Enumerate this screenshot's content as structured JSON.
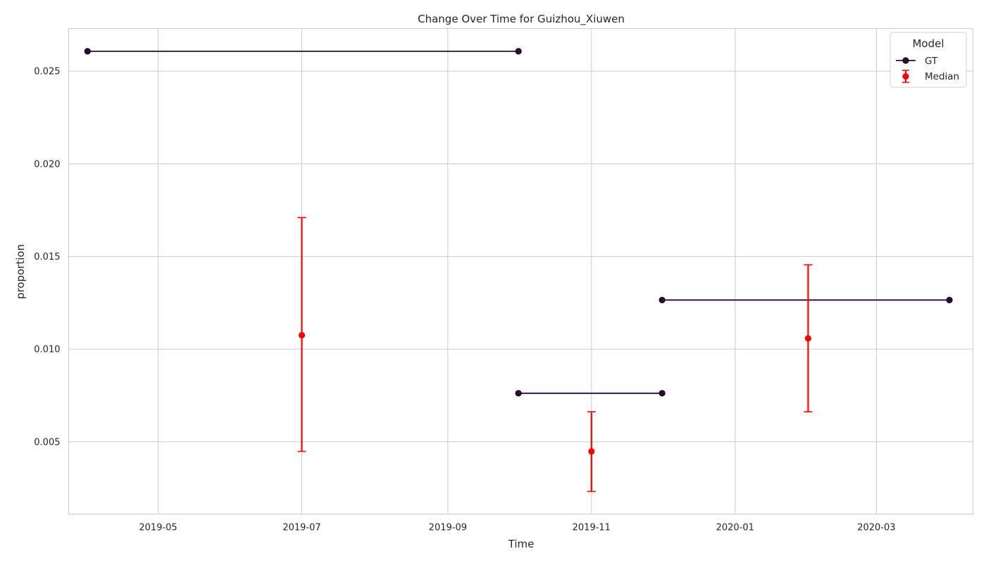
{
  "chart_data": {
    "type": "line",
    "title": "Change Over Time for Guizhou_Xiuwen",
    "xlabel": "Time",
    "ylabel": "proportion",
    "x_axis_type": "date",
    "x_range": [
      "2019-03-24",
      "2020-04-11"
    ],
    "xticks": [
      "2019-05",
      "2019-07",
      "2019-09",
      "2019-11",
      "2020-01",
      "2020-03"
    ],
    "ylim": [
      0.0011,
      0.0273
    ],
    "yticks": [
      "0.005",
      "0.010",
      "0.015",
      "0.020",
      "0.025"
    ],
    "grid": true,
    "legend": {
      "title": "Model",
      "position": "top-right",
      "entries": [
        "GT",
        "Median"
      ]
    },
    "series": [
      {
        "name": "GT",
        "kind": "line-segments",
        "color": "#2d0a36",
        "segments": [
          {
            "x": [
              "2019-04-01",
              "2019-10-01"
            ],
            "y": [
              0.02607,
              0.02607
            ]
          },
          {
            "x": [
              "2019-10-01",
              "2019-12-01"
            ],
            "y": [
              0.00762,
              0.00762
            ]
          },
          {
            "x": [
              "2019-12-01",
              "2020-04-01"
            ],
            "y": [
              0.01265,
              0.01265
            ]
          }
        ]
      },
      {
        "name": "Median",
        "kind": "errorbar",
        "color": "#ff0000",
        "points": [
          {
            "x": "2019-07-01",
            "y": 0.01075,
            "low": 0.00448,
            "high": 0.0171
          },
          {
            "x": "2019-11-01",
            "y": 0.00448,
            "low": 0.00232,
            "high": 0.00662
          },
          {
            "x": "2020-02-01",
            "y": 0.01058,
            "low": 0.00662,
            "high": 0.01455
          }
        ]
      }
    ]
  }
}
